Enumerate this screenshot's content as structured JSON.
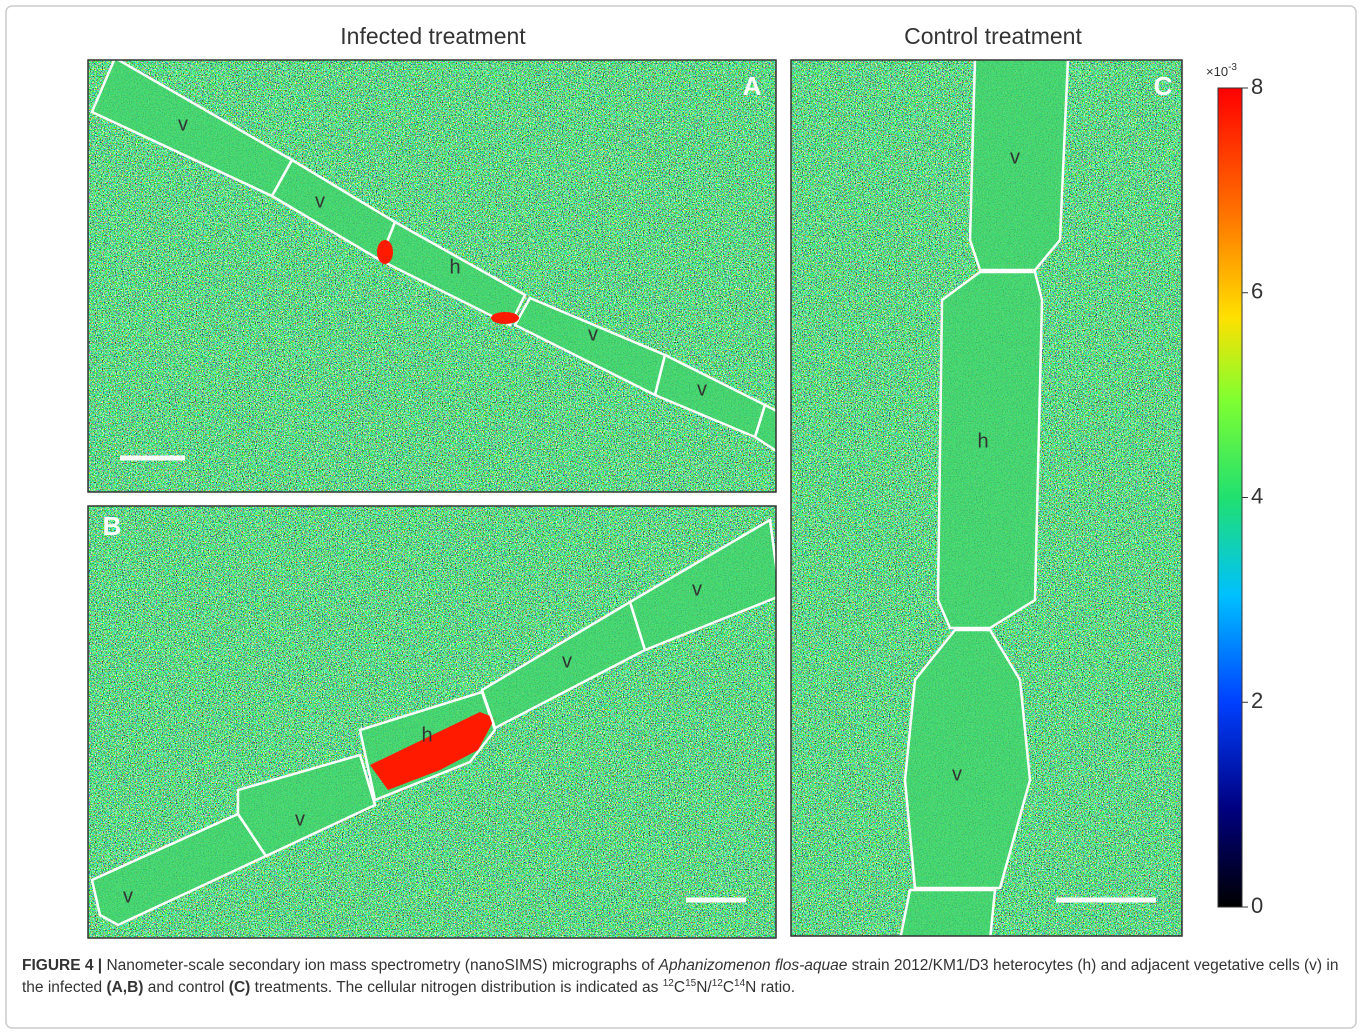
{
  "figure": {
    "columns": [
      "Infected treatment",
      "Control treatment"
    ],
    "panels": [
      {
        "label": "A",
        "cells": [
          "v",
          "v",
          "h",
          "v",
          "v"
        ]
      },
      {
        "label": "B",
        "cells": [
          "v",
          "v",
          "h",
          "v",
          "v"
        ]
      },
      {
        "label": "C",
        "cells": [
          "v",
          "h",
          "v"
        ]
      }
    ],
    "colorbar": {
      "multiplier": "×10",
      "exponent": "-3",
      "lim": [
        0,
        8
      ],
      "ticks": [
        0,
        2,
        4,
        6,
        8
      ]
    },
    "caption": [
      "FIGURE 4 |",
      " Nanometer-scale secondary ion mass spectrometry (nanoSIMS) micrographs of ",
      "Aphanizomenon flos-aquae",
      " strain 2012/KM1/D3 heterocytes (h) and adjacent vegetative cells (v) in the infected ",
      "(A,B)",
      " and control ",
      "(C)",
      " treatments. The cellular nitrogen distribution is indicated as ",
      "12",
      "C",
      "15",
      "N/",
      "12",
      "C",
      "14",
      "N ratio."
    ]
  }
}
